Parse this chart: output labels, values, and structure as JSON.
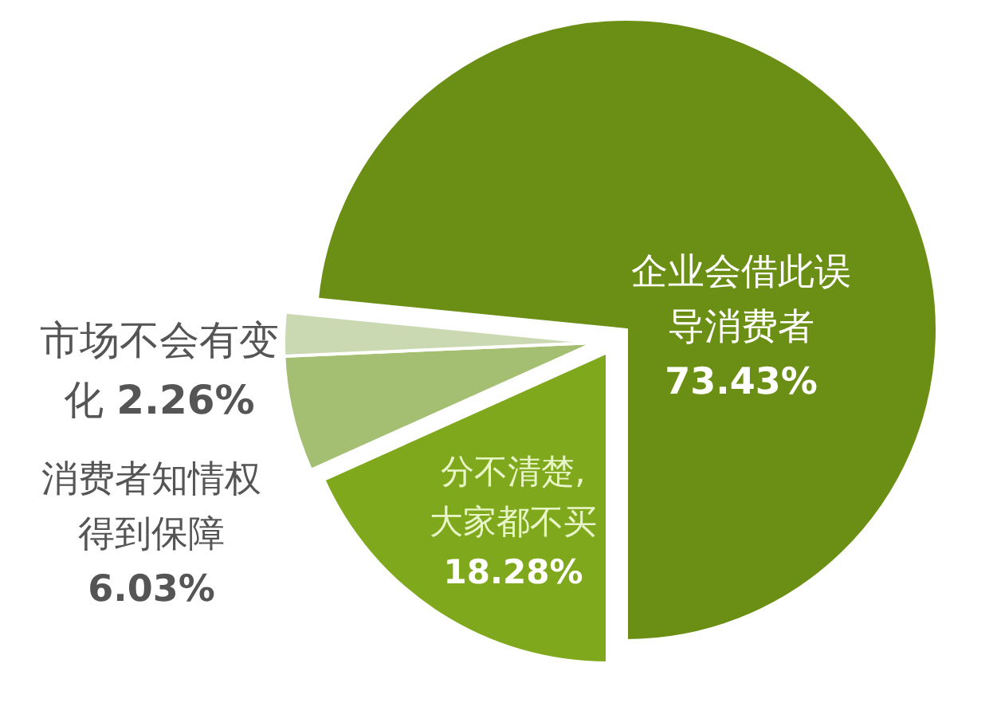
{
  "chart_data": {
    "type": "pie",
    "categories": [
      "企业会借此误导消费者",
      "分不清楚,大家都不买",
      "消费者知情权得到保障",
      "市场不会有变化"
    ],
    "values": [
      73.43,
      18.28,
      6.03,
      2.26
    ],
    "colors": [
      "#6a8f14",
      "#80a81c",
      "#a4bf72",
      "#cad9b2"
    ],
    "value_labels": [
      "73.43%",
      "18.28%",
      "6.03%",
      "2.26%"
    ]
  }
}
